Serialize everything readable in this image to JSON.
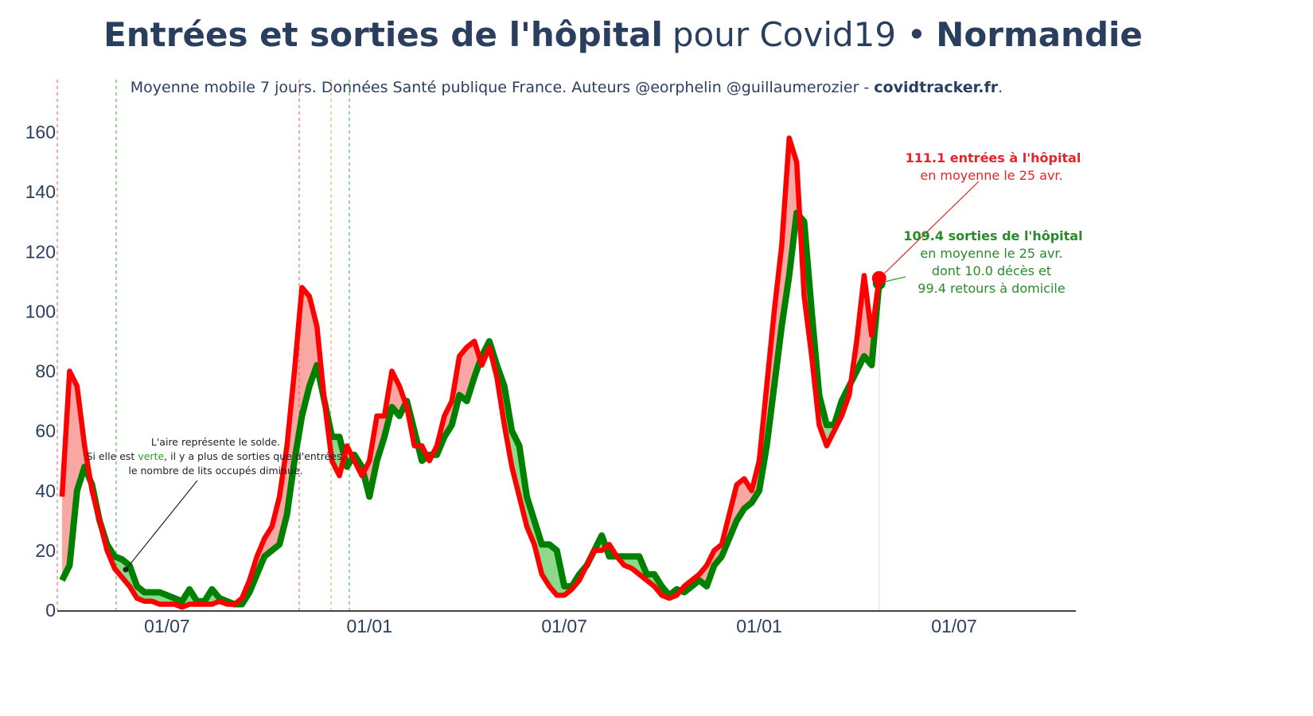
{
  "chart_data": {
    "type": "line",
    "title": {
      "bold": "Entrées et sorties de l'hôpital",
      "normal": "pour Covid19 •",
      "region": "Normandie"
    },
    "subtitle": {
      "text": "Moyenne mobile 7 jours. Données Santé publique France. Auteurs @eorphelin @guillaumerozier -",
      "site": "covidtracker.fr",
      "end": "."
    },
    "categories": [
      null,
      null,
      null,
      null,
      null,
      null,
      null,
      null,
      null,
      null,
      null,
      null,
      null,
      null,
      "01/07",
      null,
      null,
      null,
      null,
      null,
      null,
      null,
      null,
      null,
      null,
      null,
      null,
      null,
      null,
      null,
      null,
      null,
      null,
      null,
      null,
      null,
      null,
      null,
      null,
      null,
      null,
      "01/01",
      null,
      null,
      null,
      null,
      null,
      null,
      null,
      null,
      null,
      null,
      null,
      null,
      null,
      null,
      null,
      null,
      null,
      null,
      null,
      null,
      null,
      null,
      null,
      null,
      null,
      "01/07",
      null,
      null,
      null,
      null,
      null,
      null,
      null,
      null,
      null,
      null,
      null,
      null,
      null,
      null,
      null,
      null,
      null,
      null,
      null,
      null,
      null,
      null,
      null,
      null,
      null,
      "01/01",
      null,
      null,
      null,
      null,
      null,
      null,
      null,
      null,
      null,
      null,
      null,
      null,
      null,
      null,
      null,
      null,
      null,
      null,
      null,
      null,
      null,
      null,
      null,
      null,
      null,
      "01/07",
      null,
      null,
      null,
      null,
      null,
      null,
      null,
      null,
      null,
      null,
      null,
      null,
      null,
      null,
      null,
      null
    ],
    "series": [
      {
        "name": "sorties",
        "color": "#008000",
        "fill": "rgba(0,170,0,0.45)",
        "values": [
          10,
          15,
          40,
          48,
          42,
          30,
          22,
          18,
          17,
          15,
          8,
          6,
          6,
          6,
          5,
          4,
          3,
          7,
          3,
          3,
          7,
          4,
          3,
          2,
          2,
          6,
          12,
          18,
          20,
          22,
          32,
          50,
          65,
          75,
          82,
          70,
          58,
          58,
          48,
          52,
          48,
          38,
          50,
          58,
          68,
          65,
          70,
          60,
          50,
          52,
          52,
          58,
          62,
          72,
          70,
          78,
          85,
          90,
          82,
          75,
          60,
          55,
          38,
          30,
          22,
          22,
          20,
          8,
          8,
          12,
          15,
          20,
          25,
          18,
          18,
          18,
          18,
          18,
          12,
          12,
          8,
          5,
          7,
          6,
          8,
          10,
          8,
          15,
          18,
          24,
          30,
          34,
          36,
          40,
          55,
          75,
          95,
          112,
          133,
          130,
          100,
          72,
          62,
          62,
          70,
          75,
          80,
          85,
          82,
          109.4,
          null,
          null,
          null,
          null,
          null,
          null,
          null,
          null,
          null,
          null,
          null,
          null,
          null,
          null,
          null,
          null,
          null,
          null,
          null,
          null,
          null,
          null,
          null,
          null,
          null,
          null
        ]
      },
      {
        "name": "entrées",
        "color": "#ff0000",
        "fill": "rgba(240,60,50,0.45)",
        "values": [
          38,
          80,
          75,
          55,
          40,
          30,
          20,
          14,
          11,
          8,
          4,
          3,
          3,
          2,
          2,
          2,
          1,
          2,
          2,
          2,
          2,
          3,
          2,
          2,
          4,
          10,
          18,
          24,
          28,
          38,
          55,
          80,
          108,
          105,
          95,
          70,
          50,
          45,
          55,
          50,
          45,
          50,
          65,
          65,
          80,
          75,
          68,
          55,
          55,
          50,
          55,
          65,
          70,
          85,
          88,
          90,
          82,
          88,
          78,
          62,
          48,
          38,
          28,
          22,
          12,
          8,
          5,
          5,
          7,
          10,
          15,
          20,
          20,
          22,
          18,
          15,
          14,
          12,
          10,
          8,
          5,
          4,
          5,
          8,
          10,
          12,
          15,
          20,
          22,
          32,
          42,
          44,
          40,
          50,
          75,
          100,
          122,
          158,
          150,
          105,
          85,
          62,
          55,
          60,
          65,
          72,
          90,
          112,
          92,
          111.1,
          null,
          null,
          null,
          null,
          null,
          null,
          null,
          null,
          null,
          null,
          null,
          null,
          null,
          null,
          null,
          null,
          null,
          null,
          null,
          null,
          null,
          null,
          null,
          null,
          null,
          null
        ]
      }
    ],
    "ylim": [
      0,
      178
    ],
    "yticks": [
      0,
      20,
      40,
      60,
      80,
      100,
      120,
      140,
      160
    ],
    "grid": false,
    "annotations": {
      "entrees": [
        "111.1 entrées à l'hôpital",
        "en moyenne le 25 avr."
      ],
      "sorties": [
        "109.4 sorties de l'hôpital",
        "en moyenne le 25 avr.",
        "dont 10.0 décès et",
        "99.4 retours à domicile"
      ],
      "solde": {
        "line1": "L'aire représente le solde.",
        "before": "Si elle est",
        "colored": "verte",
        "after": ", il y a plus de sorties que d'entrées,",
        "line3": "le nombre de lits occupés diminue."
      }
    }
  }
}
